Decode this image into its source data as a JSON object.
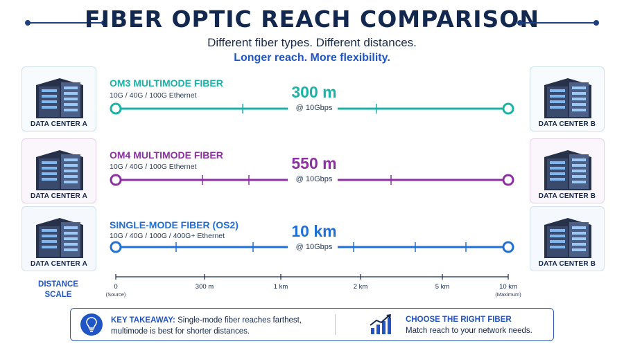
{
  "header": {
    "title": "FIBER OPTIC REACH COMPARISON",
    "subtitle": "Different fiber types. Different distances.",
    "tagline": "Longer reach. More flexibility."
  },
  "endpoints": {
    "left_label": "DATA CENTER A",
    "right_label": "DATA CENTER B"
  },
  "fibers": [
    {
      "name_prefix": "OM3",
      "name_rest": "MULTIMODE FIBER",
      "standards": "10G / 40G / 100G Ethernet",
      "reach": "300 m",
      "rate": "@ 10Gbps",
      "color": "#1ab3a6",
      "card_color": "#e9f6f8"
    },
    {
      "name_prefix": "OM4",
      "name_rest": "MULTIMODE FIBER",
      "standards": "10G / 40G / 100G Ethernet",
      "reach": "550 m",
      "rate": "@ 10Gbps",
      "color": "#8e2fa3",
      "card_color": "#f6eef8"
    },
    {
      "name_prefix": "SINGLE-MODE",
      "name_rest": "FIBER (OS2)",
      "standards": "10G / 40G / 100G / 400G+ Ethernet",
      "reach": "10 km",
      "rate": "@ 10Gbps",
      "color": "#1f6fd6",
      "card_color": "#eef4fb"
    }
  ],
  "scale": {
    "label": "DISTANCE SCALE",
    "ticks": [
      {
        "label": "0",
        "sub": "(Source)"
      },
      {
        "label": "300 m",
        "sub": ""
      },
      {
        "label": "1 km",
        "sub": ""
      },
      {
        "label": "2 km",
        "sub": ""
      },
      {
        "label": "5 km",
        "sub": ""
      },
      {
        "label": "10 km",
        "sub": "(Maximum)"
      }
    ]
  },
  "footer": {
    "takeaway_label": "KEY TAKEAWAY:",
    "takeaway_line1": "Single-mode fiber reaches farthest,",
    "takeaway_line2": "multimode is best for shorter distances.",
    "choose_title": "CHOOSE THE RIGHT FIBER",
    "choose_sub": "Match reach to your network needs.",
    "icons": [
      "lightbulb-icon",
      "growth-chart-icon"
    ]
  }
}
